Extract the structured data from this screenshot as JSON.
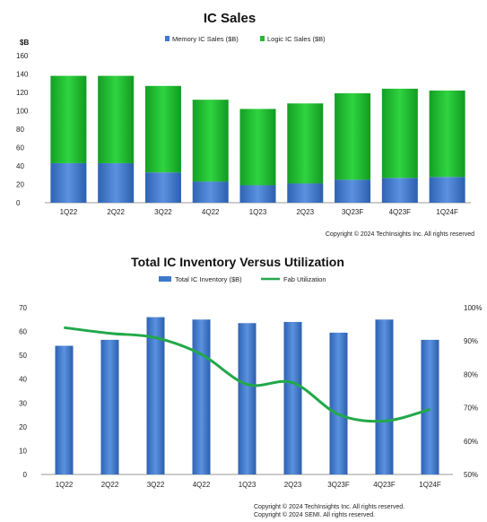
{
  "chart_data": [
    {
      "type": "bar",
      "stacked": true,
      "title": "IC Sales",
      "unit_label": "$B",
      "categories": [
        "1Q22",
        "2Q22",
        "3Q22",
        "4Q22",
        "1Q23",
        "2Q23",
        "3Q23F",
        "4Q23F",
        "1Q24F"
      ],
      "series": [
        {
          "name": "Memory IC Sales ($B)",
          "color": "#3e78cc",
          "values": [
            43,
            43,
            33,
            23,
            19,
            21,
            25,
            27,
            28
          ]
        },
        {
          "name": "Logic IC Sales ($B)",
          "color": "#22bb33",
          "values": [
            95,
            95,
            94,
            89,
            83,
            87,
            94,
            97,
            94
          ]
        }
      ],
      "ylim": [
        0,
        160
      ],
      "yticks": [
        0,
        20,
        40,
        60,
        80,
        100,
        120,
        140,
        160
      ],
      "legend_position": "top-center",
      "grid": false,
      "copyright": "Copyright © 2024 TechInsights Inc.  All rights reserved"
    },
    {
      "type": "bar+line",
      "title": "Total IC Inventory Versus Utilization",
      "categories": [
        "1Q22",
        "2Q22",
        "3Q22",
        "4Q22",
        "1Q23",
        "2Q23",
        "3Q23F",
        "4Q23F",
        "1Q24F"
      ],
      "series": [
        {
          "name": "Total IC Inventory ($B)",
          "type": "bar",
          "axis": "left",
          "color": "#3e78cc",
          "values": [
            54,
            56.5,
            66,
            65,
            63.5,
            64,
            59.5,
            65,
            56.5
          ]
        },
        {
          "name": "Fab Utilization",
          "type": "line",
          "axis": "right",
          "color": "#22a84a",
          "values": [
            94,
            92.3,
            91,
            86,
            77,
            77.5,
            68,
            66,
            69.5
          ]
        }
      ],
      "ylim_left": [
        0,
        70
      ],
      "yticks_left": [
        0,
        10,
        20,
        30,
        40,
        50,
        60,
        70
      ],
      "ylim_right": [
        50,
        100
      ],
      "yticks_right": [
        "50%",
        "60%",
        "70%",
        "80%",
        "90%",
        "100%"
      ],
      "legend_position": "top-center",
      "grid": false,
      "copyright_lines": [
        "Copyright © 2024 TechInsights Inc.  All rights reserved.",
        "Copyright © 2024 SEMI.  All rights reserved."
      ]
    }
  ]
}
